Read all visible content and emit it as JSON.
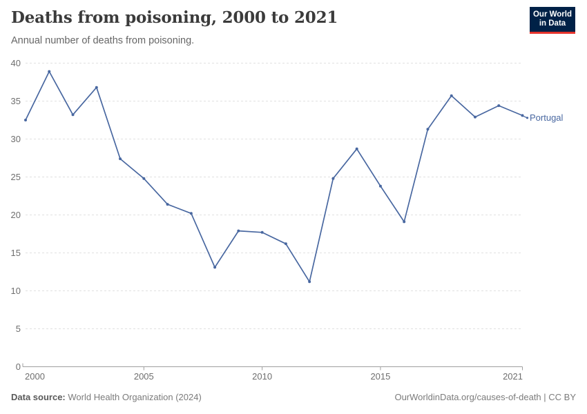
{
  "header": {
    "title": "Deaths from poisoning, 2000 to 2021",
    "subtitle": "Annual number of deaths from poisoning.",
    "logo": {
      "line1": "Our World",
      "line2": "in Data",
      "bg_color": "#002147",
      "accent_color": "#e5332c"
    }
  },
  "chart_data": {
    "type": "line",
    "title": "Deaths from poisoning, 2000 to 2021",
    "xlabel": "",
    "ylabel": "",
    "xlim": [
      2000,
      2021
    ],
    "ylim": [
      0,
      40
    ],
    "yticks": [
      0,
      5,
      10,
      15,
      20,
      25,
      30,
      35,
      40
    ],
    "xticks": [
      2000,
      2005,
      2010,
      2015,
      2021
    ],
    "grid": "horizontal-dashed",
    "legend_position": "end-of-line",
    "line_color": "#4867a0",
    "series": [
      {
        "name": "Portugal",
        "color": "#4867a0",
        "x": [
          2000,
          2001,
          2002,
          2003,
          2004,
          2005,
          2006,
          2007,
          2008,
          2009,
          2010,
          2011,
          2012,
          2013,
          2014,
          2015,
          2016,
          2017,
          2018,
          2019,
          2020,
          2021
        ],
        "values": [
          32.5,
          38.9,
          33.2,
          36.8,
          27.4,
          24.8,
          21.4,
          20.2,
          13.1,
          17.9,
          17.7,
          16.2,
          11.2,
          24.8,
          28.7,
          23.8,
          19.1,
          31.3,
          35.7,
          32.9,
          34.4,
          33.1
        ]
      }
    ]
  },
  "footer": {
    "datasource_label": "Data source:",
    "datasource_value": "World Health Organization (2024)",
    "link": "OurWorldinData.org/causes-of-death | CC BY"
  }
}
